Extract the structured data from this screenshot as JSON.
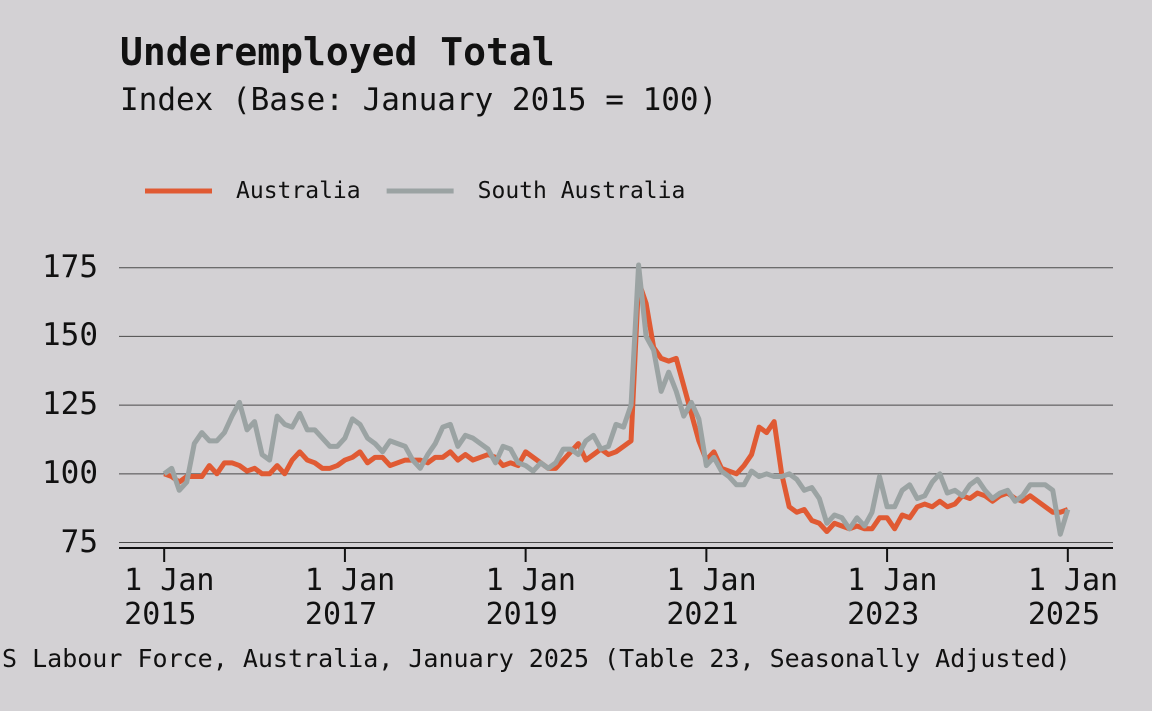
{
  "chart_data": {
    "type": "line",
    "title": "Underemployed Total",
    "subtitle": "Index (Base: January 2015 = 100)",
    "source": "S Labour Force, Australia, January 2025 (Table 23, Seasonally Adjusted)",
    "legend": "top-left",
    "grid": true,
    "x": [
      "2015-01-01",
      "2015-02-01",
      "2015-03-01",
      "2015-04-01",
      "2015-05-01",
      "2015-06-01",
      "2015-07-01",
      "2015-08-01",
      "2015-09-01",
      "2015-10-01",
      "2015-11-01",
      "2015-12-01",
      "2016-01-01",
      "2016-02-01",
      "2016-03-01",
      "2016-04-01",
      "2016-05-01",
      "2016-06-01",
      "2016-07-01",
      "2016-08-01",
      "2016-09-01",
      "2016-10-01",
      "2016-11-01",
      "2016-12-01",
      "2017-01-01",
      "2017-02-01",
      "2017-03-01",
      "2017-04-01",
      "2017-05-01",
      "2017-06-01",
      "2017-07-01",
      "2017-08-01",
      "2017-09-01",
      "2017-10-01",
      "2017-11-01",
      "2017-12-01",
      "2018-01-01",
      "2018-02-01",
      "2018-03-01",
      "2018-04-01",
      "2018-05-01",
      "2018-06-01",
      "2018-07-01",
      "2018-08-01",
      "2018-09-01",
      "2018-10-01",
      "2018-11-01",
      "2018-12-01",
      "2019-01-01",
      "2019-02-01",
      "2019-03-01",
      "2019-04-01",
      "2019-05-01",
      "2019-06-01",
      "2019-07-01",
      "2019-08-01",
      "2019-09-01",
      "2019-10-01",
      "2019-11-01",
      "2019-12-01",
      "2020-01-01",
      "2020-02-01",
      "2020-03-01",
      "2020-04-01",
      "2020-05-01",
      "2020-06-01",
      "2020-07-01",
      "2020-08-01",
      "2020-09-01",
      "2020-10-01",
      "2020-11-01",
      "2020-12-01",
      "2021-01-01",
      "2021-02-01",
      "2021-03-01",
      "2021-04-01",
      "2021-05-01",
      "2021-06-01",
      "2021-07-01",
      "2021-08-01",
      "2021-09-01",
      "2021-10-01",
      "2021-11-01",
      "2021-12-01",
      "2022-01-01",
      "2022-02-01",
      "2022-03-01",
      "2022-04-01",
      "2022-05-01",
      "2022-06-01",
      "2022-07-01",
      "2022-08-01",
      "2022-09-01",
      "2022-10-01",
      "2022-11-01",
      "2022-12-01",
      "2023-01-01",
      "2023-02-01",
      "2023-03-01",
      "2023-04-01",
      "2023-05-01",
      "2023-06-01",
      "2023-07-01",
      "2023-08-01",
      "2023-09-01",
      "2023-10-01",
      "2023-11-01",
      "2023-12-01",
      "2024-01-01",
      "2024-02-01",
      "2024-03-01",
      "2024-04-01",
      "2024-05-01",
      "2024-06-01",
      "2024-07-01",
      "2024-08-01",
      "2024-09-01",
      "2024-10-01",
      "2024-11-01",
      "2024-12-01",
      "2025-01-01"
    ],
    "series": [
      {
        "name": "Australia",
        "color": "#e05a33",
        "values": [
          100,
          99,
          97,
          99,
          99,
          99,
          103,
          100,
          104,
          104,
          103,
          101,
          102,
          100,
          100,
          103,
          100,
          105,
          108,
          105,
          104,
          102,
          102,
          103,
          105,
          106,
          108,
          104,
          106,
          106,
          103,
          104,
          105,
          105,
          105,
          104,
          106,
          106,
          108,
          105,
          107,
          105,
          106,
          107,
          106,
          103,
          104,
          103,
          108,
          106,
          104,
          102,
          102,
          105,
          108,
          111,
          105,
          107,
          109,
          107,
          108,
          110,
          112,
          170,
          162,
          146,
          142,
          141,
          142,
          132,
          122,
          112,
          105,
          108,
          102,
          101,
          100,
          103,
          107,
          117,
          115,
          119,
          100,
          88,
          86,
          87,
          83,
          82,
          79,
          82,
          81,
          80,
          81,
          80,
          80,
          84,
          84,
          80,
          85,
          84,
          88,
          89,
          88,
          90,
          88,
          89,
          92,
          91,
          93,
          92,
          90,
          92,
          93,
          91,
          90,
          92,
          90,
          88,
          86,
          86,
          87
        ]
      },
      {
        "name": "South Australia",
        "color": "#9ba3a3",
        "values": [
          100,
          102,
          94,
          97,
          111,
          115,
          112,
          112,
          115,
          121,
          126,
          116,
          119,
          107,
          105,
          121,
          118,
          117,
          122,
          116,
          116,
          113,
          110,
          110,
          113,
          120,
          118,
          113,
          111,
          108,
          112,
          111,
          110,
          105,
          102,
          107,
          111,
          117,
          118,
          110,
          114,
          113,
          111,
          109,
          104,
          110,
          109,
          104,
          103,
          101,
          104,
          102,
          104,
          109,
          109,
          107,
          112,
          114,
          109,
          110,
          118,
          117,
          125,
          176,
          150,
          145,
          130,
          137,
          130,
          121,
          126,
          120,
          103,
          106,
          101,
          99,
          96,
          96,
          101,
          99,
          100,
          99,
          99,
          100,
          98,
          94,
          95,
          91,
          82,
          85,
          84,
          80,
          84,
          81,
          86,
          99,
          88,
          88,
          94,
          96,
          91,
          92,
          97,
          100,
          93,
          94,
          92,
          96,
          98,
          94,
          91,
          93,
          94,
          90,
          92,
          96,
          96,
          96,
          94,
          78,
          87
        ]
      }
    ],
    "xlim": [
      "2014-07-01",
      "2025-07-01"
    ],
    "xticks": [
      {
        "value": "2015-01-01",
        "label": "1 Jan 2015"
      },
      {
        "value": "2017-01-01",
        "label": "1 Jan 2017"
      },
      {
        "value": "2019-01-01",
        "label": "1 Jan 2019"
      },
      {
        "value": "2021-01-01",
        "label": "1 Jan 2021"
      },
      {
        "value": "2023-01-01",
        "label": "1 Jan 2023"
      },
      {
        "value": "2025-01-01",
        "label": "1 Jan 2025"
      }
    ],
    "ylim": [
      73,
      180
    ],
    "yticks": [
      75,
      100,
      125,
      150,
      175
    ]
  }
}
